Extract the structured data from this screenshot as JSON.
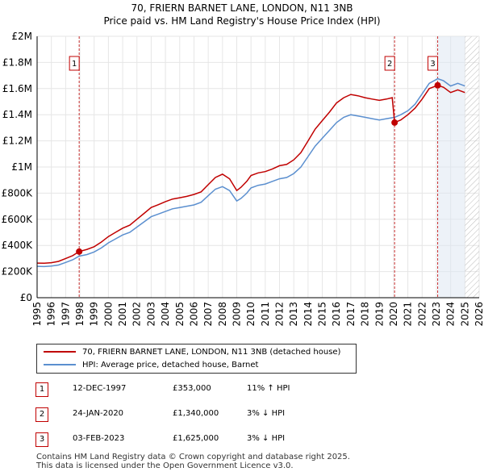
{
  "header": {
    "title_line1": "70, FRIERN BARNET LANE, LONDON, N11 3NB",
    "title_line2": "Price paid vs. HM Land Registry's House Price Index (HPI)"
  },
  "legend": {
    "property_label": "70, FRIERN BARNET LANE, LONDON, N11 3NB (detached house)",
    "hpi_label": "HPI: Average price, detached house, Barnet"
  },
  "colors": {
    "property": "#c00000",
    "hpi": "#5b8fcf",
    "future_hatch": "#bbbbbb",
    "grid": "#e6e6e6",
    "shade": "#dce6f2"
  },
  "sales": [
    {
      "num": "1",
      "date": "12-DEC-1997",
      "price": "£353,000",
      "hpi": "11% ↑ HPI"
    },
    {
      "num": "2",
      "date": "24-JAN-2020",
      "price": "£1,340,000",
      "hpi": "3% ↓ HPI"
    },
    {
      "num": "3",
      "date": "03-FEB-2023",
      "price": "£1,625,000",
      "hpi": "3% ↓ HPI"
    }
  ],
  "footer": {
    "line1": "Contains HM Land Registry data © Crown copyright and database right 2025.",
    "line2": "This data is licensed under the Open Government Licence v3.0."
  },
  "chart_data": {
    "type": "line",
    "xlim": [
      1995,
      2026
    ],
    "ylim": [
      0,
      2000000
    ],
    "y_ticks": [
      {
        "value": 0,
        "label": "£0"
      },
      {
        "value": 200000,
        "label": "£200K"
      },
      {
        "value": 400000,
        "label": "£400K"
      },
      {
        "value": 600000,
        "label": "£600K"
      },
      {
        "value": 800000,
        "label": "£800K"
      },
      {
        "value": 1000000,
        "label": "£1M"
      },
      {
        "value": 1200000,
        "label": "£1.2M"
      },
      {
        "value": 1400000,
        "label": "£1.4M"
      },
      {
        "value": 1600000,
        "label": "£1.6M"
      },
      {
        "value": 1800000,
        "label": "£1.8M"
      },
      {
        "value": 2000000,
        "label": "£2M"
      }
    ],
    "x_ticks": [
      "1995",
      "1996",
      "1997",
      "1998",
      "1999",
      "2000",
      "2001",
      "2002",
      "2003",
      "2004",
      "2005",
      "2006",
      "2007",
      "2008",
      "2009",
      "2010",
      "2011",
      "2012",
      "2013",
      "2014",
      "2015",
      "2016",
      "2017",
      "2018",
      "2019",
      "2020",
      "2021",
      "2022",
      "2023",
      "2024",
      "2025",
      "2026"
    ],
    "future_from": 2025.0,
    "series": [
      {
        "name": "HPI: Average price, detached house, Barnet",
        "color": "#5b8fcf",
        "x": [
          1995.0,
          1995.5,
          1996.0,
          1996.5,
          1997.0,
          1997.5,
          1997.95,
          1998.5,
          1999.0,
          1999.5,
          2000.0,
          2000.5,
          2001.0,
          2001.5,
          2002.0,
          2002.5,
          2003.0,
          2003.5,
          2004.0,
          2004.5,
          2005.0,
          2005.5,
          2006.0,
          2006.5,
          2007.0,
          2007.5,
          2008.0,
          2008.5,
          2009.0,
          2009.3,
          2009.7,
          2010.0,
          2010.5,
          2011.0,
          2011.5,
          2012.0,
          2012.5,
          2013.0,
          2013.5,
          2014.0,
          2014.5,
          2015.0,
          2015.5,
          2016.0,
          2016.5,
          2017.0,
          2017.5,
          2018.0,
          2018.5,
          2019.0,
          2019.5,
          2020.07,
          2020.5,
          2021.0,
          2021.5,
          2022.0,
          2022.5,
          2023.09,
          2023.5,
          2024.0,
          2024.5,
          2025.0
        ],
        "y": [
          240000,
          238000,
          242000,
          250000,
          270000,
          290000,
          318000,
          330000,
          350000,
          380000,
          420000,
          450000,
          480000,
          500000,
          540000,
          580000,
          620000,
          640000,
          660000,
          680000,
          690000,
          700000,
          710000,
          730000,
          780000,
          830000,
          850000,
          820000,
          740000,
          760000,
          800000,
          840000,
          860000,
          870000,
          890000,
          910000,
          920000,
          950000,
          1000000,
          1080000,
          1160000,
          1220000,
          1280000,
          1340000,
          1380000,
          1400000,
          1390000,
          1380000,
          1370000,
          1360000,
          1370000,
          1380000,
          1400000,
          1430000,
          1480000,
          1560000,
          1640000,
          1675000,
          1660000,
          1620000,
          1640000,
          1620000
        ]
      },
      {
        "name": "70, FRIERN BARNET LANE, LONDON, N11 3NB (detached house)",
        "color": "#c00000",
        "x": [
          1995.0,
          1995.5,
          1996.0,
          1996.5,
          1997.0,
          1997.5,
          1997.95,
          1998.5,
          1999.0,
          1999.5,
          2000.0,
          2000.5,
          2001.0,
          2001.5,
          2002.0,
          2002.5,
          2003.0,
          2003.5,
          2004.0,
          2004.5,
          2005.0,
          2005.5,
          2006.0,
          2006.5,
          2007.0,
          2007.5,
          2008.0,
          2008.5,
          2009.0,
          2009.3,
          2009.7,
          2010.0,
          2010.5,
          2011.0,
          2011.5,
          2012.0,
          2012.5,
          2013.0,
          2013.5,
          2014.0,
          2014.5,
          2015.0,
          2015.5,
          2016.0,
          2016.5,
          2017.0,
          2017.5,
          2018.0,
          2018.5,
          2019.0,
          2019.5,
          2019.9,
          2020.07,
          2020.5,
          2021.0,
          2021.5,
          2022.0,
          2022.5,
          2023.09,
          2023.5,
          2024.0,
          2024.5,
          2025.0
        ],
        "y": [
          265000,
          264000,
          268000,
          278000,
          300000,
          322000,
          353000,
          370000,
          390000,
          425000,
          468000,
          500000,
          532000,
          555000,
          600000,
          645000,
          690000,
          712000,
          735000,
          755000,
          765000,
          775000,
          790000,
          810000,
          865000,
          920000,
          945000,
          910000,
          820000,
          845000,
          890000,
          935000,
          955000,
          965000,
          985000,
          1010000,
          1020000,
          1055000,
          1110000,
          1200000,
          1290000,
          1355000,
          1420000,
          1490000,
          1530000,
          1555000,
          1545000,
          1530000,
          1520000,
          1510000,
          1520000,
          1530000,
          1340000,
          1360000,
          1400000,
          1450000,
          1520000,
          1600000,
          1625000,
          1610000,
          1570000,
          1590000,
          1570000
        ]
      }
    ],
    "sale_markers": [
      {
        "num": "1",
        "x": 1997.95,
        "y": 353000
      },
      {
        "num": "2",
        "x": 2020.07,
        "y": 1340000
      },
      {
        "num": "3",
        "x": 2023.09,
        "y": 1625000
      }
    ]
  }
}
